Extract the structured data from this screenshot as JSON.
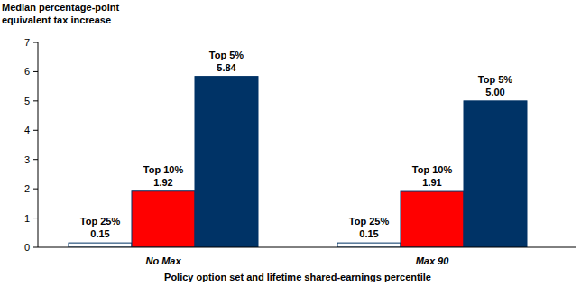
{
  "chart_data": {
    "type": "bar",
    "y_label": "Median percentage-point equivalent tax increase",
    "x_label": "Policy option set and lifetime shared-earnings percentile",
    "categories": [
      "No Max",
      "Max 90"
    ],
    "series": [
      {
        "name": "Top 25%",
        "color": "#ffffff",
        "values": [
          0.15,
          0.15
        ],
        "value_labels": [
          "0.15",
          "0.15"
        ]
      },
      {
        "name": "Top 10%",
        "color": "#ff0000",
        "values": [
          1.92,
          1.91
        ],
        "value_labels": [
          "1.92",
          "1.91"
        ]
      },
      {
        "name": "Top 5%",
        "color": "#003366",
        "values": [
          5.84,
          5.0
        ],
        "value_labels": [
          "5.84",
          "5.00"
        ]
      }
    ],
    "ylim": [
      0,
      7
    ],
    "yticks": [
      0,
      1,
      2,
      3,
      4,
      5,
      6,
      7
    ],
    "data_labels": true,
    "grid": false
  }
}
